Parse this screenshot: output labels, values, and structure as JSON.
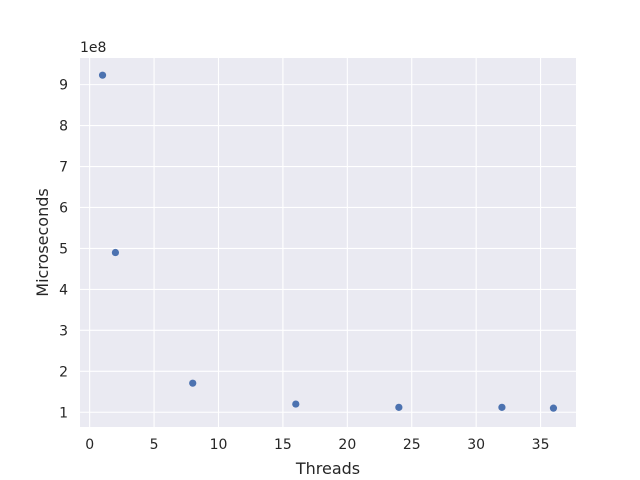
{
  "chart_data": {
    "type": "scatter",
    "title": "",
    "xlabel": "Threads",
    "ylabel": "Microseconds",
    "y_offset_label": "1e8",
    "xlim": [
      -0.75,
      37.75
    ],
    "ylim": [
      0.64,
      9.65
    ],
    "x_ticks": [
      0,
      5,
      10,
      15,
      20,
      25,
      30,
      35
    ],
    "y_ticks": [
      1,
      2,
      3,
      4,
      5,
      6,
      7,
      8,
      9
    ],
    "grid": true,
    "legend": "none",
    "series": [
      {
        "x": [
          1,
          2,
          8,
          16,
          24,
          32,
          36
        ],
        "y": [
          9.23,
          4.9,
          1.71,
          1.2,
          1.12,
          1.12,
          1.1
        ],
        "color": "#4c72b0"
      }
    ],
    "colors": {
      "plot_background": "#eaeaf2",
      "grid": "#ffffff",
      "marker": "#4c72b0"
    }
  }
}
